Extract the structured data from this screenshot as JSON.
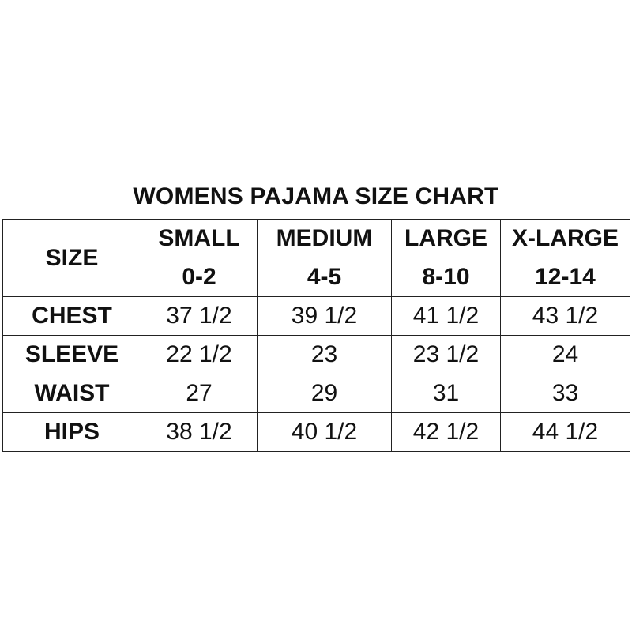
{
  "title": "WOMENS PAJAMA SIZE CHART",
  "header": {
    "corner": "SIZE",
    "sizes": [
      "SMALL",
      "MEDIUM",
      "LARGE",
      "X-LARGE"
    ],
    "ranges": [
      "0-2",
      "4-5",
      "8-10",
      "12-14"
    ]
  },
  "rows": [
    {
      "label": "CHEST",
      "values": [
        "37 1/2",
        "39 1/2",
        "41 1/2",
        "43 1/2"
      ]
    },
    {
      "label": "SLEEVE",
      "values": [
        "22 1/2",
        "23",
        "23 1/2",
        "24"
      ]
    },
    {
      "label": "WAIST",
      "values": [
        "27",
        "29",
        "31",
        "33"
      ]
    },
    {
      "label": "HIPS",
      "values": [
        "38 1/2",
        "40 1/2",
        "42 1/2",
        "44 1/2"
      ]
    }
  ]
}
